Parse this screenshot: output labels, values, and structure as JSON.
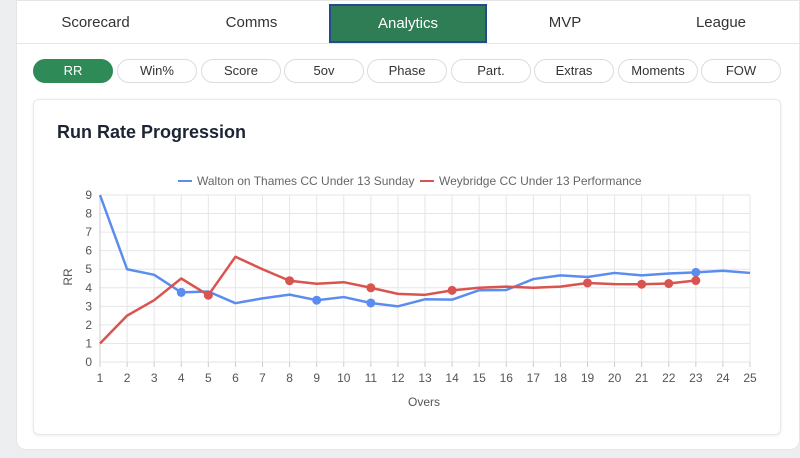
{
  "tabs": [
    {
      "label": "Scorecard",
      "active": false
    },
    {
      "label": "Comms",
      "active": false
    },
    {
      "label": "Analytics",
      "active": true
    },
    {
      "label": "MVP",
      "active": false
    },
    {
      "label": "League",
      "active": false
    }
  ],
  "subtabs": [
    {
      "label": "RR",
      "active": true
    },
    {
      "label": "Win%",
      "active": false
    },
    {
      "label": "Score",
      "active": false
    },
    {
      "label": "5ov",
      "active": false
    },
    {
      "label": "Phase",
      "active": false
    },
    {
      "label": "Part.",
      "active": false
    },
    {
      "label": "Extras",
      "active": false
    },
    {
      "label": "Moments",
      "active": false
    },
    {
      "label": "FOW",
      "active": false
    }
  ],
  "colors": {
    "accent": "#2e7d55",
    "series_blue": "#5b8def",
    "series_red": "#d9534f"
  },
  "chart_data": {
    "type": "line",
    "title": "Run Rate Progression",
    "xlabel": "Overs",
    "ylabel": "RR",
    "xlim": [
      1,
      25
    ],
    "ylim": [
      0,
      9
    ],
    "x_ticks": [
      1,
      2,
      3,
      4,
      5,
      6,
      7,
      8,
      9,
      10,
      11,
      12,
      13,
      14,
      15,
      16,
      17,
      18,
      19,
      20,
      21,
      22,
      23,
      24,
      25
    ],
    "y_ticks": [
      0,
      1,
      2,
      3,
      4,
      5,
      6,
      7,
      8,
      9
    ],
    "grid": true,
    "legend_position": "top",
    "series": [
      {
        "name": "Walton on Thames CC Under 13 Sunday",
        "color": "#5b8def",
        "x": [
          1,
          2,
          3,
          4,
          5,
          6,
          7,
          8,
          9,
          10,
          11,
          12,
          13,
          14,
          15,
          16,
          17,
          18,
          19,
          20,
          21,
          22,
          23,
          24,
          25
        ],
        "y": [
          9.0,
          5.0,
          4.7,
          3.75,
          3.8,
          3.17,
          3.43,
          3.63,
          3.33,
          3.5,
          3.18,
          3.0,
          3.38,
          3.36,
          3.87,
          3.88,
          4.47,
          4.67,
          4.58,
          4.8,
          4.67,
          4.77,
          4.83,
          4.92,
          4.8
        ],
        "wicket_overs": [
          4,
          9,
          11,
          23
        ]
      },
      {
        "name": "Weybridge CC Under 13 Performance",
        "color": "#d9534f",
        "x": [
          1,
          2,
          3,
          4,
          5,
          6,
          7,
          8,
          9,
          10,
          11,
          12,
          13,
          14,
          15,
          16,
          17,
          18,
          19,
          20,
          21,
          22,
          23
        ],
        "y": [
          1.0,
          2.5,
          3.33,
          4.5,
          3.6,
          5.67,
          5.0,
          4.38,
          4.22,
          4.3,
          4.0,
          3.67,
          3.62,
          3.86,
          4.0,
          4.06,
          4.0,
          4.06,
          4.26,
          4.2,
          4.19,
          4.23,
          4.39
        ],
        "wicket_overs": [
          5,
          8,
          11,
          14,
          19,
          21,
          22,
          23
        ]
      }
    ]
  }
}
